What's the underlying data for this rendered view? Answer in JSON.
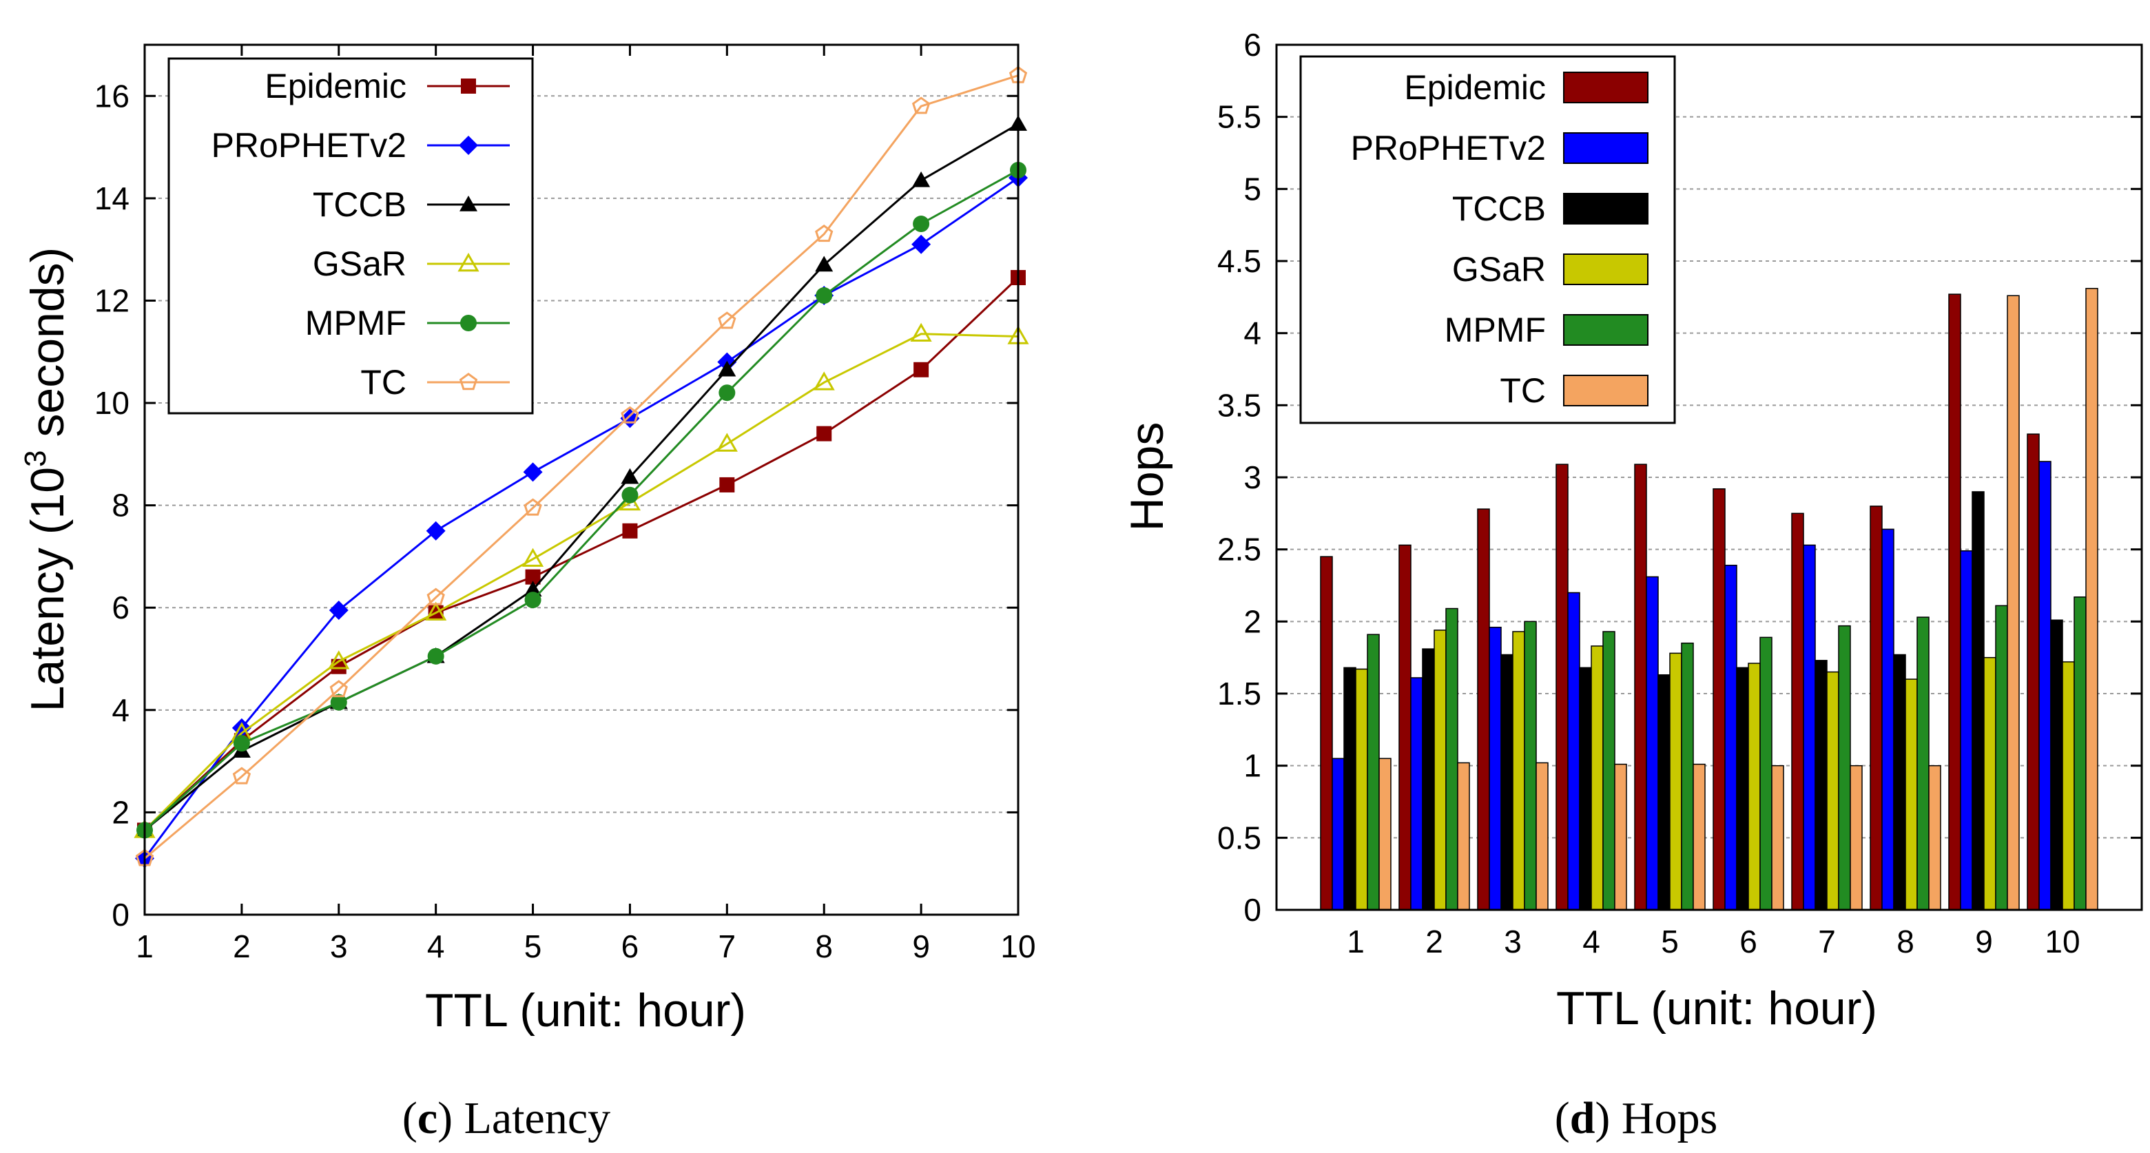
{
  "colors": {
    "Epidemic": "#8b0000",
    "PRoPHETv2": "#0000ff",
    "TCCB": "#000000",
    "GSaR": "#c8c800",
    "MPMF": "#228b22",
    "TC": "#f4a460"
  },
  "chart_data": [
    {
      "type": "line",
      "caption_letter": "c",
      "caption_text": "Latency",
      "xlabel": "TTL (unit: hour)",
      "ylabel_main": "Latency (10",
      "ylabel_sup": "3",
      "ylabel_tail": " seconds)",
      "x": [
        1,
        2,
        3,
        4,
        5,
        6,
        7,
        8,
        9,
        10
      ],
      "xlim": [
        1,
        10
      ],
      "ylim": [
        0,
        17
      ],
      "yticks": [
        0,
        2,
        4,
        6,
        8,
        10,
        12,
        14,
        16
      ],
      "xticks": [
        "1",
        "2",
        "3",
        "4",
        "5",
        "6",
        "7",
        "8",
        "9",
        "10"
      ],
      "grid": true,
      "legend_position": "top-left",
      "series": [
        {
          "name": "Epidemic",
          "marker": "square-filled",
          "values": [
            1.65,
            3.4,
            4.85,
            5.9,
            6.6,
            7.5,
            8.4,
            9.4,
            10.65,
            12.45
          ]
        },
        {
          "name": "PRoPHETv2",
          "marker": "diamond-filled",
          "values": [
            1.1,
            3.65,
            5.95,
            7.5,
            8.65,
            9.7,
            10.8,
            12.1,
            13.1,
            14.4
          ]
        },
        {
          "name": "TCCB",
          "marker": "triangle-filled",
          "values": [
            1.65,
            3.2,
            4.15,
            5.05,
            6.35,
            8.55,
            10.65,
            12.7,
            14.35,
            15.45
          ]
        },
        {
          "name": "GSaR",
          "marker": "triangle-open",
          "values": [
            1.65,
            3.55,
            4.95,
            5.9,
            6.95,
            8.05,
            9.2,
            10.4,
            11.35,
            11.3
          ]
        },
        {
          "name": "MPMF",
          "marker": "circle-filled",
          "values": [
            1.65,
            3.35,
            4.15,
            5.05,
            6.15,
            8.2,
            10.2,
            12.1,
            13.5,
            14.55
          ]
        },
        {
          "name": "TC",
          "marker": "pentagon-open",
          "values": [
            1.1,
            2.7,
            4.4,
            6.2,
            7.95,
            9.75,
            11.6,
            13.3,
            15.8,
            16.4
          ]
        }
      ]
    },
    {
      "type": "bar",
      "caption_letter": "d",
      "caption_text": "Hops",
      "xlabel": "TTL (unit: hour)",
      "ylabel": "Hops",
      "categories": [
        "1",
        "2",
        "3",
        "4",
        "5",
        "6",
        "7",
        "8",
        "9",
        "10"
      ],
      "ylim": [
        0,
        6
      ],
      "yticks": [
        "0",
        "0.5",
        "1",
        "1.5",
        "2",
        "2.5",
        "3",
        "3.5",
        "4",
        "4.5",
        "5",
        "5.5",
        "6"
      ],
      "grid": true,
      "legend_position": "top-left",
      "series": [
        {
          "name": "Epidemic",
          "values": [
            2.45,
            2.53,
            2.78,
            3.09,
            3.09,
            2.92,
            2.75,
            2.8,
            4.27,
            3.3
          ]
        },
        {
          "name": "PRoPHETv2",
          "values": [
            1.05,
            1.61,
            1.96,
            2.2,
            2.31,
            2.39,
            2.53,
            2.64,
            2.49,
            3.11
          ]
        },
        {
          "name": "TCCB",
          "values": [
            1.68,
            1.81,
            1.77,
            1.68,
            1.63,
            1.68,
            1.73,
            1.77,
            2.9,
            2.01
          ]
        },
        {
          "name": "GSaR",
          "values": [
            1.67,
            1.94,
            1.93,
            1.83,
            1.78,
            1.71,
            1.65,
            1.6,
            1.75,
            1.72
          ]
        },
        {
          "name": "MPMF",
          "values": [
            1.91,
            2.09,
            2.0,
            1.93,
            1.85,
            1.89,
            1.97,
            2.03,
            2.11,
            2.17
          ]
        },
        {
          "name": "TC",
          "values": [
            1.05,
            1.02,
            1.02,
            1.01,
            1.01,
            1.0,
            1.0,
            1.0,
            4.26,
            4.31
          ]
        }
      ]
    }
  ]
}
